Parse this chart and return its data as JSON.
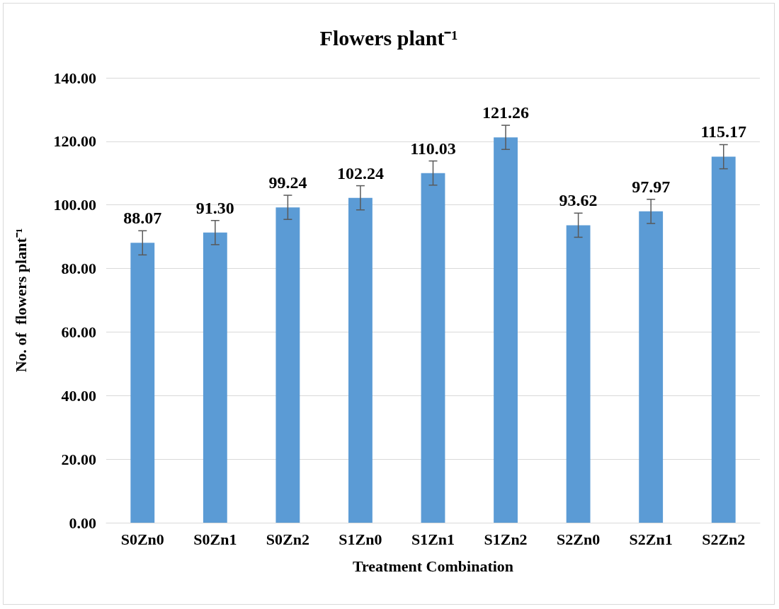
{
  "chart_data": {
    "type": "bar",
    "title": "Flowers plant⁻¹",
    "xlabel": "Treatment Combination",
    "ylabel": "No. of  flowers plant⁻¹",
    "categories": [
      "S0Zn0",
      "S0Zn1",
      "S0Zn2",
      "S1Zn0",
      "S1Zn1",
      "S1Zn2",
      "S2Zn0",
      "S2Zn1",
      "S2Zn2"
    ],
    "values": [
      88.07,
      91.3,
      99.24,
      102.24,
      110.03,
      121.26,
      93.62,
      97.97,
      115.17
    ],
    "value_labels": [
      "88.07",
      "91.30",
      "99.24",
      "102.24",
      "110.03",
      "121.26",
      "93.62",
      "97.97",
      "115.17"
    ],
    "errors": [
      3.8,
      3.8,
      3.8,
      3.8,
      3.8,
      3.8,
      3.8,
      3.8,
      3.8
    ],
    "color": "#5b9bd5",
    "ylim": [
      0,
      140
    ],
    "yticks": [
      {
        "value": 0,
        "label": "0.00"
      },
      {
        "value": 20,
        "label": "20.00"
      },
      {
        "value": 40,
        "label": "40.00"
      },
      {
        "value": 60,
        "label": "60.00"
      },
      {
        "value": 80,
        "label": "80.00"
      },
      {
        "value": 100,
        "label": "100.00"
      },
      {
        "value": 120,
        "label": "120.00"
      },
      {
        "value": 140,
        "label": "140.00"
      }
    ],
    "grid": "y"
  }
}
